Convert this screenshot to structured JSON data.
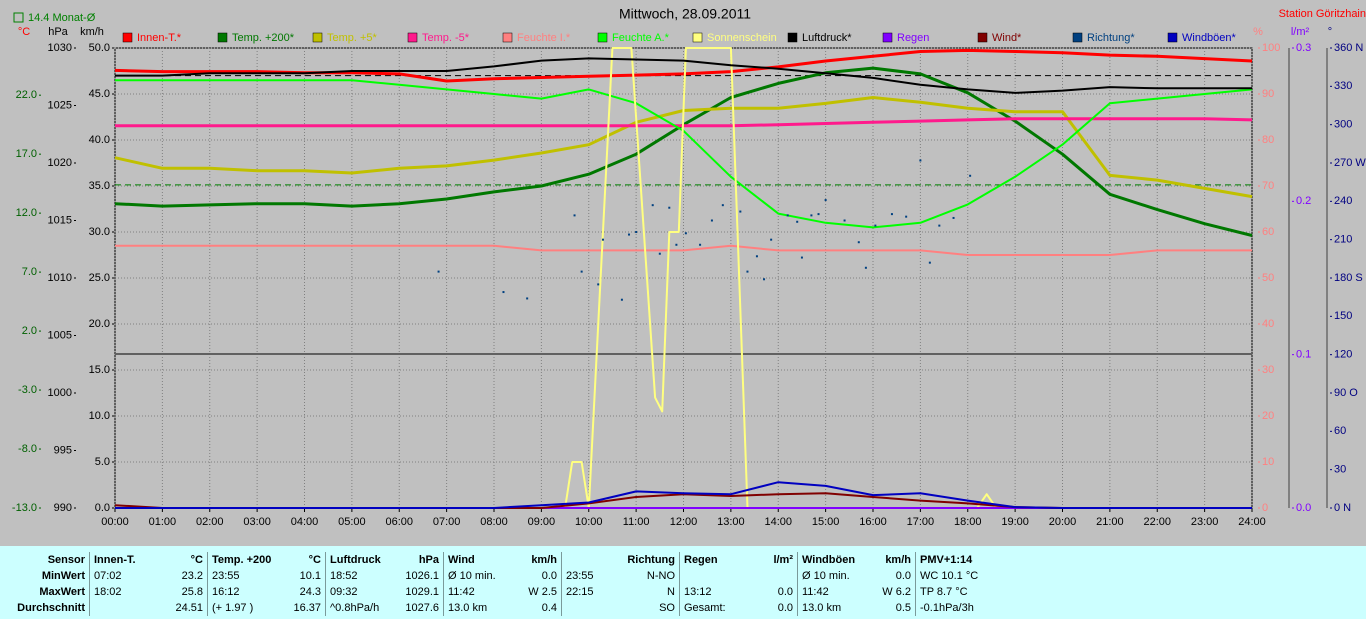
{
  "chart_data": {
    "type": "line",
    "title": "Mittwoch, 28.09.2011",
    "station": "Station Göritzhain",
    "month_avg_label": "14.4 Monat-Ø",
    "month_avg": 14.4,
    "month_avg_color": "#008000",
    "pressure_avg": 1027.6,
    "grid": true,
    "xlim": [
      0,
      24
    ],
    "xticks": [
      {
        "value": 0,
        "label": "00:00"
      },
      {
        "value": 1,
        "label": "01:00"
      },
      {
        "value": 2,
        "label": "02:00"
      },
      {
        "value": 3,
        "label": "03:00"
      },
      {
        "value": 4,
        "label": "04:00"
      },
      {
        "value": 5,
        "label": "05:00"
      },
      {
        "value": 6,
        "label": "06:00"
      },
      {
        "value": 7,
        "label": "07:00"
      },
      {
        "value": 8,
        "label": "08:00"
      },
      {
        "value": 9,
        "label": "09:00"
      },
      {
        "value": 10,
        "label": "10:00"
      },
      {
        "value": 11,
        "label": "11:00"
      },
      {
        "value": 12,
        "label": "12:00"
      },
      {
        "value": 13,
        "label": "13:00"
      },
      {
        "value": 14,
        "label": "14:00"
      },
      {
        "value": 15,
        "label": "15:00"
      },
      {
        "value": 16,
        "label": "16:00"
      },
      {
        "value": 17,
        "label": "17:00"
      },
      {
        "value": 18,
        "label": "18:00"
      },
      {
        "value": 19,
        "label": "19:00"
      },
      {
        "value": 20,
        "label": "20:00"
      },
      {
        "value": 21,
        "label": "21:00"
      },
      {
        "value": 22,
        "label": "22:00"
      },
      {
        "value": 23,
        "label": "23:00"
      },
      {
        "value": 24,
        "label": "24:00"
      }
    ],
    "x": [
      0,
      1,
      2,
      3,
      4,
      5,
      6,
      7,
      8,
      9,
      10,
      11,
      12,
      13,
      14,
      15,
      16,
      17,
      18,
      19,
      20,
      21,
      22,
      23,
      24
    ],
    "yaxes": {
      "y": {
        "label": "°C",
        "label_color": "#ff0000",
        "color": "#006000",
        "lim": [
          -13,
          26
        ],
        "ticks": [
          {
            "value": 22,
            "label": "22.0"
          },
          {
            "value": 17,
            "label": "17.0"
          },
          {
            "value": 12,
            "label": "12.0"
          },
          {
            "value": 7,
            "label": "7.0"
          },
          {
            "value": 2,
            "label": "2.0"
          },
          {
            "value": -3,
            "label": "-3.0"
          },
          {
            "value": -8,
            "label": "-8.0"
          },
          {
            "value": -13,
            "label": "-13.0"
          }
        ]
      },
      "y2": {
        "label": "hPa",
        "label_color": "#000000",
        "color": "#000000",
        "lim": [
          990,
          1030
        ],
        "ticks": [
          1030,
          1025,
          1020,
          1015,
          1010,
          1005,
          1000,
          995,
          990
        ]
      },
      "y3": {
        "label": "km/h",
        "label_color": "#000000",
        "color": "#000000",
        "lim": [
          0,
          50
        ],
        "ticks": [
          {
            "value": 50,
            "label": "50.0"
          },
          {
            "value": 45,
            "label": "45.0"
          },
          {
            "value": 40,
            "label": "40.0"
          },
          {
            "value": 35,
            "label": "35.0"
          },
          {
            "value": 30,
            "label": "30.0"
          },
          {
            "value": 25,
            "label": "25.0"
          },
          {
            "value": 20,
            "label": "20.0"
          },
          {
            "value": 15,
            "label": "15.0"
          },
          {
            "value": 10,
            "label": "10.0"
          },
          {
            "value": 5,
            "label": "5.0"
          },
          {
            "value": 0,
            "label": "0.0"
          }
        ]
      },
      "y4": {
        "label": "%",
        "label_color": "#ff8080",
        "color": "#ff8080",
        "lim": [
          0,
          100
        ],
        "ticks": [
          100,
          90,
          80,
          70,
          60,
          50,
          40,
          30,
          20,
          10,
          0
        ]
      },
      "y5": {
        "label": "l/m²",
        "label_color": "#8000ff",
        "color": "#8000ff",
        "lim": [
          0,
          0.3
        ],
        "ticks": [
          {
            "value": 0.3,
            "label": "0.3"
          },
          {
            "value": 0.2,
            "label": "0.2"
          },
          {
            "value": 0.1,
            "label": "0.1"
          },
          {
            "value": 0,
            "label": "0.0"
          }
        ]
      },
      "y6": {
        "label": "°",
        "label_color": "#000080",
        "color": "#000080",
        "lim": [
          0,
          360
        ],
        "ticks": [
          {
            "value": 360,
            "label": "360 N"
          },
          330,
          300,
          {
            "value": 270,
            "label": "270 W"
          },
          240,
          210,
          {
            "value": 180,
            "label": "180 S"
          },
          150,
          120,
          {
            "value": 90,
            "label": "90 O"
          },
          60,
          30,
          {
            "value": 0,
            "label": "0 N"
          }
        ]
      }
    },
    "series": [
      {
        "name": "Innen-T.*",
        "color": "#ff0000",
        "axis": "y",
        "values": [
          24.1,
          24.0,
          24.0,
          24.0,
          23.9,
          23.9,
          23.8,
          23.2,
          23.4,
          23.5,
          23.6,
          23.7,
          23.8,
          24.0,
          24.4,
          24.9,
          25.3,
          25.7,
          25.8,
          25.7,
          25.6,
          25.4,
          25.3,
          25.1,
          24.9
        ]
      },
      {
        "name": "Temp. +200*",
        "color": "#007800",
        "axis": "y",
        "values": [
          12.8,
          12.6,
          12.7,
          12.8,
          12.8,
          12.6,
          12.8,
          13.2,
          13.8,
          14.3,
          15.3,
          17.0,
          19.5,
          21.8,
          23.0,
          23.9,
          24.3,
          23.8,
          22.2,
          19.8,
          17.0,
          13.6,
          12.3,
          11.1,
          10.1
        ]
      },
      {
        "name": "Temp. +5*",
        "color": "#c0c000",
        "axis": "y",
        "values": [
          16.7,
          15.8,
          15.8,
          15.6,
          15.6,
          15.4,
          15.8,
          16.0,
          16.5,
          17.1,
          17.8,
          19.7,
          20.7,
          20.9,
          20.9,
          21.3,
          21.8,
          21.4,
          20.9,
          20.6,
          20.6,
          15.2,
          14.8,
          14.1,
          13.4
        ]
      },
      {
        "name": "Temp. -5*",
        "color": "#ff1a8c",
        "axis": "y",
        "values": [
          19.4,
          19.4,
          19.4,
          19.4,
          19.4,
          19.4,
          19.4,
          19.4,
          19.4,
          19.4,
          19.4,
          19.4,
          19.4,
          19.4,
          19.5,
          19.6,
          19.7,
          19.8,
          19.9,
          20.0,
          20.0,
          20.0,
          20.0,
          20.0,
          19.9
        ]
      },
      {
        "name": "Feuchte I.*",
        "color": "#ff8080",
        "axis": "y4",
        "values": [
          57,
          57,
          57,
          57,
          57,
          57,
          57,
          57,
          57,
          56,
          56,
          56,
          56,
          57,
          56,
          56,
          56,
          56,
          55,
          55,
          55,
          55,
          56,
          56,
          56
        ]
      },
      {
        "name": "Feuchte A.*",
        "color": "#00ff00",
        "axis": "y4",
        "values": [
          93,
          93,
          93,
          93,
          93,
          93,
          92,
          91,
          90,
          89,
          91,
          88,
          82,
          72,
          64,
          62,
          61,
          62,
          66,
          72,
          79,
          88,
          89,
          90,
          91
        ]
      },
      {
        "name": "Sonnenschein",
        "color": "#ffff80",
        "axis": "y4",
        "x": [
          0,
          9.5,
          9.65,
          9.85,
          10.0,
          10.5,
          10.9,
          11.4,
          11.55,
          11.7,
          11.9,
          12.05,
          13.0,
          13.35,
          18.2,
          18.4,
          18.6,
          24
        ],
        "values": [
          0,
          0,
          10,
          10,
          0,
          100,
          100,
          24,
          21,
          60,
          60,
          100,
          100,
          0,
          0,
          3,
          0,
          0
        ]
      },
      {
        "name": "Luftdruck*",
        "color": "#000000",
        "axis": "y2",
        "values": [
          1027.6,
          1027.6,
          1027.8,
          1027.8,
          1027.8,
          1028.0,
          1028.0,
          1028.0,
          1028.4,
          1028.9,
          1029.1,
          1029.0,
          1028.9,
          1028.5,
          1028.2,
          1027.8,
          1027.4,
          1026.8,
          1026.4,
          1026.1,
          1026.3,
          1026.6,
          1026.5,
          1026.5,
          1026.5
        ]
      },
      {
        "name": "Regen",
        "color": "#8000ff",
        "axis": "y5",
        "values": [
          0,
          0,
          0,
          0,
          0,
          0,
          0,
          0,
          0,
          0,
          0,
          0,
          0,
          0,
          0,
          0,
          0,
          0,
          0,
          0,
          0,
          0,
          0,
          0,
          0
        ]
      },
      {
        "name": "Wind*",
        "color": "#800000",
        "axis": "y3",
        "values": [
          0.3,
          0,
          0,
          0,
          0,
          0,
          0,
          0,
          0,
          0,
          0.5,
          1.2,
          1.5,
          1.3,
          1.5,
          1.6,
          1.2,
          0.8,
          0.5,
          0.1,
          0,
          0,
          0,
          0,
          0
        ]
      },
      {
        "name": "Richtung*",
        "color": "#004080",
        "axis": "y6",
        "kind": "dots",
        "x": [
          6.83,
          8.2,
          8.7,
          9.7,
          9.85,
          10.2,
          10.3,
          10.7,
          10.85,
          11.0,
          11.35,
          11.5,
          11.7,
          11.85,
          12.05,
          12.35,
          12.6,
          12.83,
          13.2,
          13.35,
          13.55,
          13.7,
          13.85,
          14.2,
          14.4,
          14.5,
          14.7,
          14.85,
          15.0,
          15.4,
          15.7,
          15.85,
          16.05,
          16.4,
          16.7,
          17.0,
          17.2,
          17.4,
          17.7,
          18.05
        ],
        "values": [
          185,
          169,
          164,
          229,
          185,
          175,
          210,
          163,
          214,
          216,
          237,
          199,
          235,
          206,
          215,
          206,
          225,
          237,
          232,
          185,
          197,
          179,
          210,
          229,
          224,
          196,
          229,
          230,
          241,
          225,
          208,
          188,
          221,
          230,
          228,
          272,
          192,
          221,
          227,
          260
        ]
      },
      {
        "name": "Windböen*",
        "color": "#0000c0",
        "axis": "y3",
        "values": [
          0,
          0,
          0,
          0,
          0,
          0,
          0,
          0,
          0,
          0.3,
          0.6,
          1.8,
          1.6,
          1.5,
          2.8,
          2.4,
          1.4,
          1.6,
          0.8,
          0.1,
          0,
          0,
          0,
          0,
          0
        ]
      }
    ]
  },
  "table": {
    "row_title": "Sensor",
    "row_labels": [
      "MinWert",
      "MaxWert",
      "Durchschnitt"
    ],
    "columns": [
      {
        "title": "Innen-T.",
        "unit": "°C",
        "rows": [
          [
            "07:02",
            "23.2"
          ],
          [
            "18:02",
            "25.8"
          ],
          [
            "24.51"
          ]
        ]
      },
      {
        "title": "Temp. +200",
        "unit": "°C",
        "rows": [
          [
            "23:55",
            "10.1"
          ],
          [
            "16:12",
            "24.3"
          ],
          [
            "(+ 1.97 )",
            "16.37"
          ]
        ]
      },
      {
        "title": "Luftdruck",
        "unit": "hPa",
        "rows": [
          [
            "18:52",
            "1026.1"
          ],
          [
            "09:32",
            "1029.1"
          ],
          [
            "^0.8hPa/h",
            "1027.6"
          ]
        ]
      },
      {
        "title": "Wind",
        "unit": "km/h",
        "rows": [
          [
            "Ø 10 min.",
            "0.0"
          ],
          [
            "11:42",
            "W 2.5"
          ],
          [
            "13.0 km",
            "0.4"
          ]
        ]
      },
      {
        "title": "Richtung",
        "rows": [
          [
            "23:55",
            "N-NO"
          ],
          [
            "22:15",
            "N"
          ],
          [
            "SO"
          ]
        ]
      },
      {
        "title": "Regen",
        "unit": "l/m²",
        "rows": [
          [],
          [
            "13:12",
            "0.0"
          ],
          [
            "Gesamt:",
            "0.0"
          ]
        ]
      },
      {
        "title": "Windböen",
        "unit": "km/h",
        "rows": [
          [
            "Ø 10 min.",
            "0.0"
          ],
          [
            "11:42",
            "W 6.2"
          ],
          [
            "13.0 km",
            "0.5"
          ]
        ]
      },
      {
        "title": "PMV+1:14",
        "rows": [
          [
            "WC 10.1 °C"
          ],
          [
            "TP 8.7 °C"
          ],
          [
            "-0.1hPa/3h"
          ]
        ]
      }
    ]
  }
}
